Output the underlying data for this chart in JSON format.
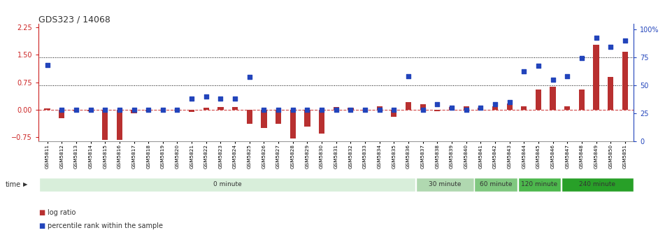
{
  "title": "GDS323 / 14068",
  "samples": [
    "GSM5811",
    "GSM5812",
    "GSM5813",
    "GSM5814",
    "GSM5815",
    "GSM5816",
    "GSM5817",
    "GSM5818",
    "GSM5819",
    "GSM5820",
    "GSM5821",
    "GSM5822",
    "GSM5823",
    "GSM5824",
    "GSM5825",
    "GSM5826",
    "GSM5827",
    "GSM5828",
    "GSM5829",
    "GSM5830",
    "GSM5831",
    "GSM5832",
    "GSM5833",
    "GSM5834",
    "GSM5835",
    "GSM5836",
    "GSM5837",
    "GSM5838",
    "GSM5839",
    "GSM5840",
    "GSM5841",
    "GSM5842",
    "GSM5843",
    "GSM5844",
    "GSM5845",
    "GSM5846",
    "GSM5847",
    "GSM5848",
    "GSM5849",
    "GSM5850",
    "GSM5851"
  ],
  "log_ratio": [
    0.03,
    -0.22,
    -0.04,
    -0.04,
    -0.82,
    -0.82,
    -0.1,
    -0.04,
    -0.02,
    -0.02,
    -0.05,
    0.05,
    0.08,
    0.08,
    -0.38,
    -0.5,
    -0.38,
    -0.78,
    -0.45,
    -0.65,
    0.08,
    0.05,
    -0.02,
    0.1,
    -0.2,
    0.2,
    0.15,
    -0.04,
    0.08,
    0.1,
    0.06,
    0.1,
    0.18,
    0.1,
    0.55,
    0.62,
    0.1,
    0.55,
    1.78,
    0.9,
    1.58
  ],
  "percentile_rank": [
    68,
    28,
    28,
    28,
    28,
    28,
    28,
    28,
    28,
    28,
    38,
    40,
    38,
    38,
    57,
    28,
    28,
    28,
    28,
    28,
    28,
    28,
    28,
    28,
    28,
    58,
    28,
    33,
    30,
    28,
    30,
    33,
    35,
    62,
    67,
    55,
    58,
    74,
    92,
    84,
    90
  ],
  "ylim_left": [
    -0.85,
    2.35
  ],
  "ylim_right": [
    0,
    105
  ],
  "yticks_left": [
    -0.75,
    0.0,
    0.75,
    1.5,
    2.25
  ],
  "yticks_right": [
    0,
    25,
    50,
    75,
    100
  ],
  "yticks_right_labels": [
    "0",
    "25",
    "50",
    "75",
    "100%"
  ],
  "dotted_lines_pct": [
    50,
    75
  ],
  "time_groups": [
    {
      "label": "0 minute",
      "start": 0,
      "end": 26,
      "color": "#d8eeda"
    },
    {
      "label": "30 minute",
      "start": 26,
      "end": 30,
      "color": "#b0d8b0"
    },
    {
      "label": "60 minute",
      "start": 30,
      "end": 33,
      "color": "#80c880"
    },
    {
      "label": "120 minute",
      "start": 33,
      "end": 36,
      "color": "#4db84d"
    },
    {
      "label": "240 minute",
      "start": 36,
      "end": 41,
      "color": "#28a028"
    }
  ],
  "bar_color": "#b83030",
  "dot_color": "#2244bb",
  "zero_line_color": "#cc3333",
  "title_color": "#333333",
  "left_axis_color": "#cc2222",
  "right_axis_color": "#2244bb",
  "legend_log_ratio": "log ratio",
  "legend_percentile": "percentile rank within the sample"
}
